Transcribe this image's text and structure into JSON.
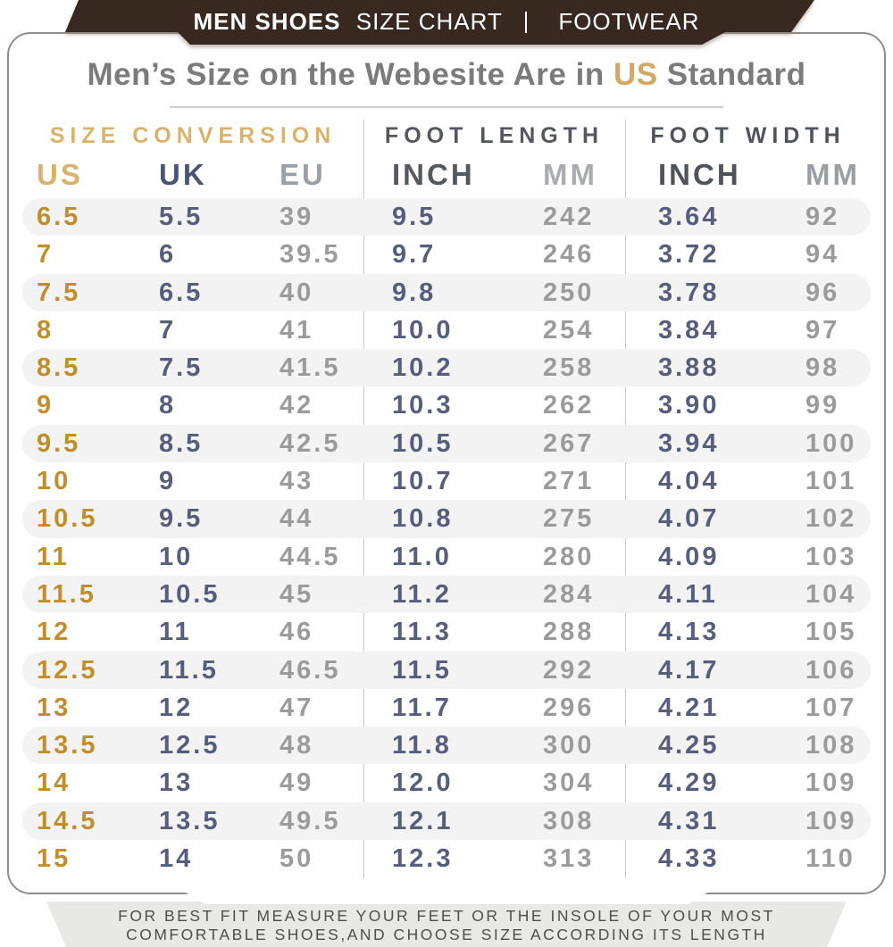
{
  "banner": {
    "title_bold": "MEN SHOES",
    "title_regular": "SIZE CHART",
    "title_right": "FOOTWEAR"
  },
  "heading": {
    "prefix": "Men’s Size on the Webesite Are in ",
    "highlight": "US",
    "suffix": " Standard"
  },
  "table": {
    "groups": [
      {
        "label": "SIZE CONVERSION"
      },
      {
        "label": "FOOT LENGTH"
      },
      {
        "label": "FOOT WIDTH"
      }
    ],
    "columns": [
      "US",
      "UK",
      "EU",
      "INCH",
      "MM",
      "INCH",
      "MM"
    ],
    "rows": [
      [
        "6.5",
        "5.5",
        "39",
        "9.5",
        "242",
        "3.64",
        "92"
      ],
      [
        "7",
        "6",
        "39.5",
        "9.7",
        "246",
        "3.72",
        "94"
      ],
      [
        "7.5",
        "6.5",
        "40",
        "9.8",
        "250",
        "3.78",
        "96"
      ],
      [
        "8",
        "7",
        "41",
        "10.0",
        "254",
        "3.84",
        "97"
      ],
      [
        "8.5",
        "7.5",
        "41.5",
        "10.2",
        "258",
        "3.88",
        "98"
      ],
      [
        "9",
        "8",
        "42",
        "10.3",
        "262",
        "3.90",
        "99"
      ],
      [
        "9.5",
        "8.5",
        "42.5",
        "10.5",
        "267",
        "3.94",
        "100"
      ],
      [
        "10",
        "9",
        "43",
        "10.7",
        "271",
        "4.04",
        "101"
      ],
      [
        "10.5",
        "9.5",
        "44",
        "10.8",
        "275",
        "4.07",
        "102"
      ],
      [
        "11",
        "10",
        "44.5",
        "11.0",
        "280",
        "4.09",
        "103"
      ],
      [
        "11.5",
        "10.5",
        "45",
        "11.2",
        "284",
        "4.11",
        "104"
      ],
      [
        "12",
        "11",
        "46",
        "11.3",
        "288",
        "4.13",
        "105"
      ],
      [
        "12.5",
        "11.5",
        "46.5",
        "11.5",
        "292",
        "4.17",
        "106"
      ],
      [
        "13",
        "12",
        "47",
        "11.7",
        "296",
        "4.21",
        "107"
      ],
      [
        "13.5",
        "12.5",
        "48",
        "11.8",
        "300",
        "4.25",
        "108"
      ],
      [
        "14",
        "13",
        "49",
        "12.0",
        "304",
        "4.29",
        "109"
      ],
      [
        "14.5",
        "13.5",
        "49.5",
        "12.1",
        "308",
        "4.31",
        "109"
      ],
      [
        "15",
        "14",
        "50",
        "12.3",
        "313",
        "4.33",
        "110"
      ]
    ]
  },
  "footer": {
    "line1": "FOR BEST FIT MEASURE YOUR FEET OR THE INSOLE OF YOUR MOST",
    "line2": "COMFORTABLE SHOES,AND CHOOSE SIZE ACCORDING ITS LENGTH"
  },
  "colors": {
    "banner_brown": "#372820",
    "gold_header": "#d9b36e",
    "gold_value": "#c08e2d",
    "navy_header": "#4a5476",
    "navy_value": "#565e7c",
    "gray_value": "#9b9b9b",
    "dark_gray_header": "#54575e",
    "light_gray_header": "#a9acb1",
    "row_stripe": "#f2f3f2",
    "title_gray": "#7b7b7b"
  }
}
